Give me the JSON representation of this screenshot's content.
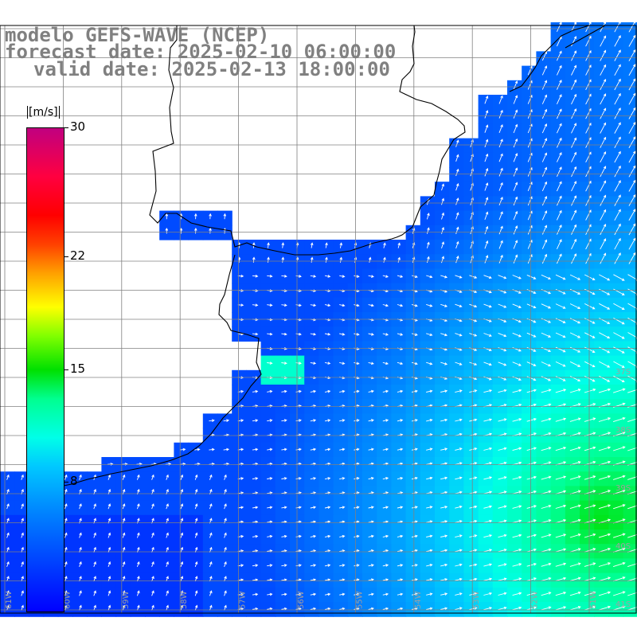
{
  "title": {
    "line1": "modelo GEFS-WAVE (NCEP)",
    "line2": "forecast date: 2025-02-10 06:00:00",
    "line3": "valid date: 2025-02-13 18:00:00"
  },
  "colorbar": {
    "units": "[m/s]",
    "ticks": [
      {
        "label": "30",
        "value": 30
      },
      {
        "label": "22",
        "value": 22
      },
      {
        "label": "15",
        "value": 15
      },
      {
        "label": "8",
        "value": 8
      }
    ],
    "min_value": 0,
    "max_value": 30
  },
  "map": {
    "lat_labels": [
      "37S",
      "38S",
      "39S",
      "40S",
      "41S"
    ],
    "lon_labels": [
      "61W",
      "60W",
      "59W",
      "58W",
      "57W",
      "56W",
      "55W",
      "54W",
      "53W",
      "52W",
      "51W"
    ],
    "colors": {
      "land": "#ffffff",
      "gridline": "#808080",
      "coastline": "#000000",
      "arrow": "#ffffff"
    }
  }
}
